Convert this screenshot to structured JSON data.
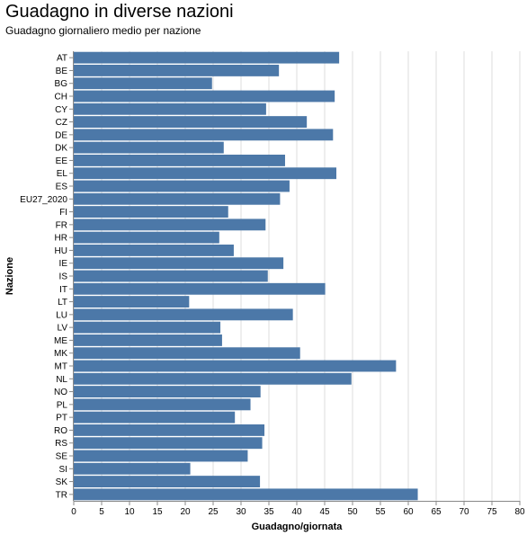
{
  "chart_data": {
    "type": "bar",
    "orientation": "horizontal",
    "title": "Guadagno in diverse nazioni",
    "subtitle": "Guadagno giornaliero medio per nazione",
    "xlabel": "Guadagno/giornata",
    "ylabel": "Nazione",
    "xlim": [
      0,
      80
    ],
    "xticks": [
      0,
      5,
      10,
      15,
      20,
      25,
      30,
      35,
      40,
      45,
      50,
      55,
      60,
      65,
      70,
      75,
      80
    ],
    "grid": true,
    "bar_color": "#4c78a8",
    "categories": [
      "AT",
      "BE",
      "BG",
      "CH",
      "CY",
      "CZ",
      "DE",
      "DK",
      "EE",
      "EL",
      "ES",
      "EU27_2020",
      "FI",
      "FR",
      "HR",
      "HU",
      "IE",
      "IS",
      "IT",
      "LT",
      "LU",
      "LV",
      "ME",
      "MK",
      "MT",
      "NL",
      "NO",
      "PL",
      "PT",
      "RO",
      "RS",
      "SE",
      "SI",
      "SK",
      "TR"
    ],
    "values": [
      47.6,
      36.8,
      24.8,
      46.8,
      34.5,
      41.8,
      46.5,
      26.9,
      37.9,
      47.1,
      38.7,
      37.0,
      27.7,
      34.4,
      26.1,
      28.7,
      37.6,
      34.8,
      45.1,
      20.7,
      39.3,
      26.3,
      26.6,
      40.6,
      57.8,
      49.8,
      33.5,
      31.7,
      28.9,
      34.2,
      33.8,
      31.2,
      20.9,
      33.4,
      61.7
    ]
  }
}
